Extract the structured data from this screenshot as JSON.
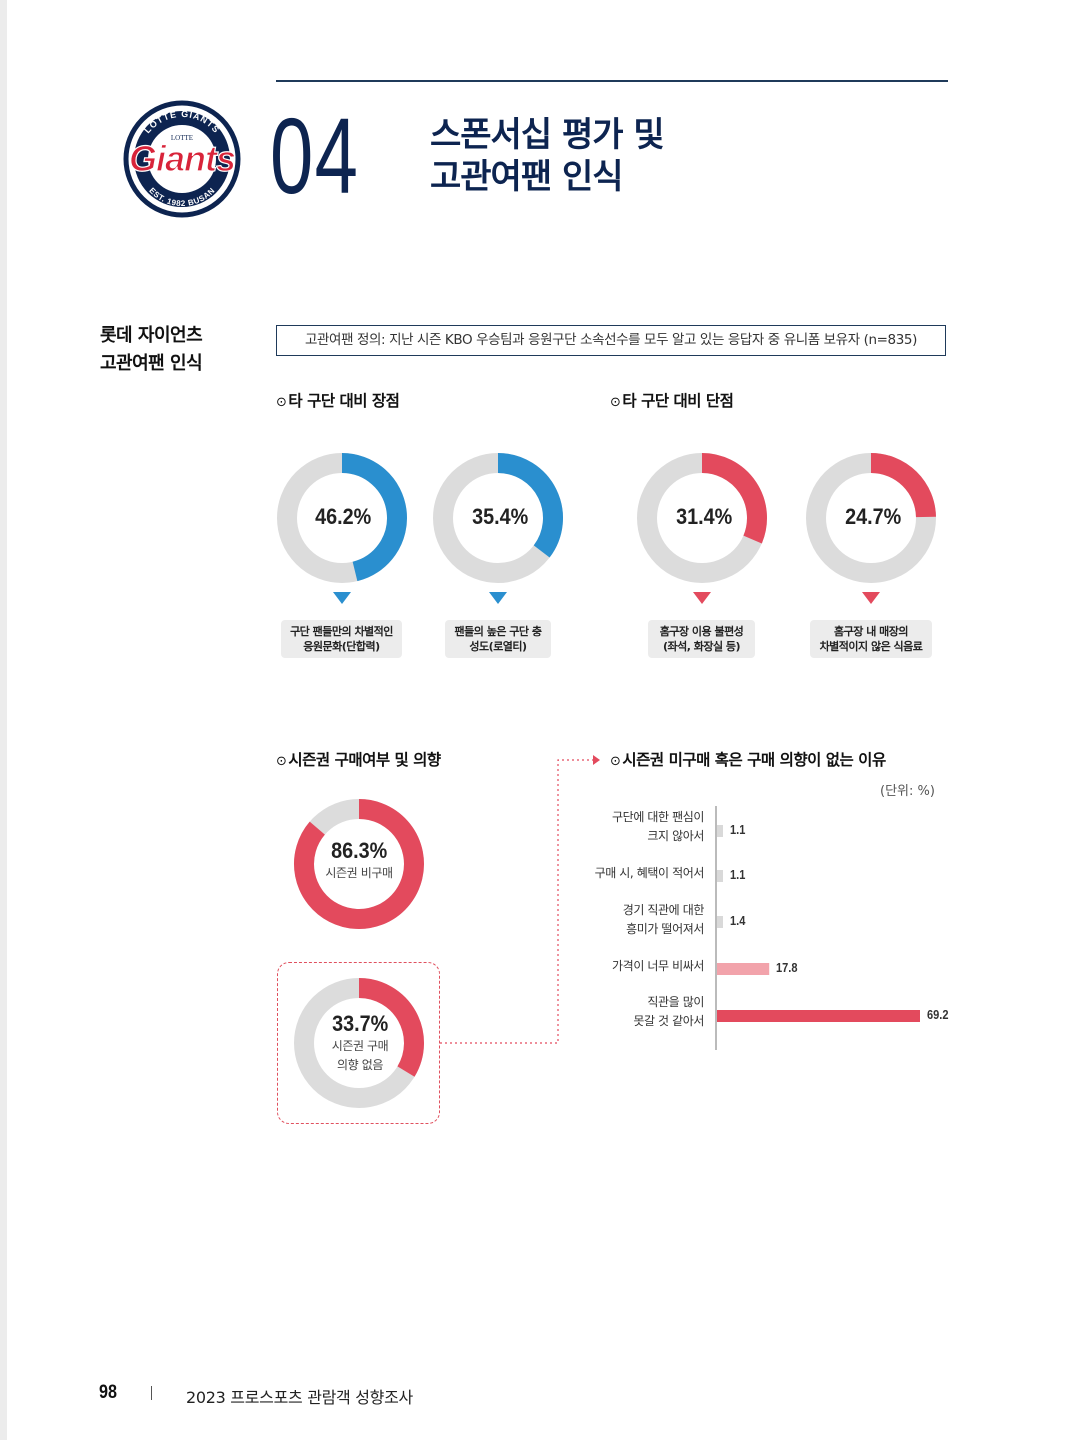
{
  "header": {
    "section_number": "04",
    "title_line1": "스폰서십 평가 및",
    "title_line2": "고관여팬 인식",
    "logo": {
      "icon": "lotte-giants-logo",
      "text_top": "LOTTE GIANTS",
      "text_mid": "LOTTE",
      "wordmark": "Giants",
      "text_bottom": "EST. 1982 BUSAN",
      "colors": {
        "navy": "#0d2450",
        "red": "#d8243a"
      }
    }
  },
  "side_title": {
    "line1": "롯데 자이언츠",
    "line2": "고관여팬 인식"
  },
  "definition": "고관여팬 정의: 지난 시즌 KBO 우승팀과 응원구단 소속선수를 모두 알고 있는 응답자 중 유니폼 보유자 (n=835)",
  "sections": {
    "advantages": "타 구단 대비 장점",
    "disadvantages": "타 구단 대비 단점",
    "season_ticket": "시즌권 구매여부 및 의향",
    "reasons": "시즌권 미구매 혹은 구매 의향이 없는 이유"
  },
  "colors": {
    "blue": "#2a8fcf",
    "red": "#e34a5d",
    "pink": "#f2a3ab",
    "track": "#dcdcdc",
    "gray_bar": "#d9d9d9"
  },
  "chart_data": [
    {
      "type": "pie",
      "title": "타 구단 대비 장점",
      "series": [
        {
          "label": "구단 팬들만의 차별적인 응원문화(단합력)",
          "value": 46.2,
          "display": "46.2%"
        },
        {
          "label": "팬들의 높은 구단 충성도(로열티)",
          "value": 35.4,
          "display": "35.4%"
        }
      ]
    },
    {
      "type": "pie",
      "title": "타 구단 대비 단점",
      "series": [
        {
          "label": "홈구장 이용 불편성 (좌석, 화장실 등)",
          "value": 31.4,
          "display": "31.4%"
        },
        {
          "label": "홈구장 내 매장의 차별적이지 않은 식음료",
          "value": 24.7,
          "display": "24.7%"
        }
      ]
    },
    {
      "type": "pie",
      "title": "시즌권 구매여부 및 의향",
      "series": [
        {
          "label": "시즌권 비구매",
          "value": 86.3,
          "display": "86.3%"
        },
        {
          "label": "시즌권 구매 의향 없음",
          "value": 33.7,
          "display": "33.7%"
        }
      ]
    },
    {
      "type": "bar",
      "orientation": "horizontal",
      "title": "시즌권 미구매 혹은 구매 의향이 없는 이유",
      "unit": "(단위: %)",
      "categories": [
        "구단에 대한 팬심이 크지 않아서",
        "구매 시, 혜택이 적어서",
        "경기 직관에 대한 흥미가 떨어져서",
        "가격이 너무 비싸서",
        "직관을 많이 못갈 것 같아서"
      ],
      "values": [
        1.1,
        1.1,
        1.4,
        17.8,
        69.2
      ],
      "value_labels": [
        "1.1",
        "1.1",
        "1.4",
        "17.8",
        "69.2"
      ],
      "xlim": [
        0,
        69.2
      ]
    }
  ],
  "labels": {
    "adv1": [
      "구단 팬들만의 차별적인",
      "응원문화(단합력)"
    ],
    "adv2": [
      "팬들의 높은 구단 충",
      "성도(로열티)"
    ],
    "dis1": [
      "홈구장 이용 불편성",
      "(좌석, 화장실 등)"
    ],
    "dis2": [
      "홈구장 내 매장의",
      "차별적이지 않은 식음료"
    ],
    "ticket1": "시즌권 비구매",
    "ticket2": [
      "시즌권 구매",
      "의향 없음"
    ],
    "reasons": [
      [
        "구단에 대한 팬심이",
        "크지 않아서"
      ],
      [
        "구매 시, 혜택이 적어서"
      ],
      [
        "경기 직관에 대한",
        "흥미가 떨어져서"
      ],
      [
        "가격이 너무 비싸서"
      ],
      [
        "직관을 많이",
        "못갈 것 같아서"
      ]
    ]
  },
  "footer": {
    "page_number": "98",
    "report_title": "2023 프로스포츠 관람객 성향조사"
  }
}
